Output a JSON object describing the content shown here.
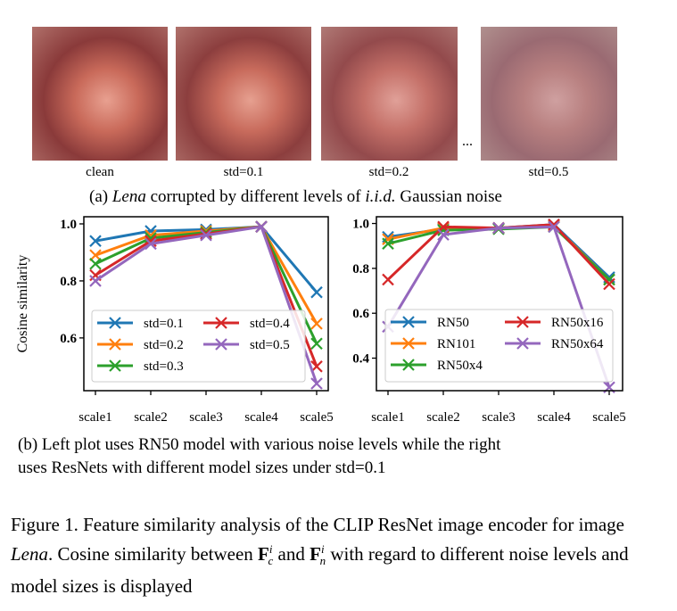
{
  "panel_a": {
    "images": [
      {
        "label": "clean",
        "noise": 0
      },
      {
        "label": "std=0.1",
        "noise": 0.1
      },
      {
        "label": "std=0.2",
        "noise": 0.2
      },
      {
        "label": "std=0.5",
        "noise": 0.5
      }
    ],
    "ellipsis": "...",
    "caption_prefix": "(a) ",
    "caption_italic": "Lena",
    "caption_mid": " corrupted by different levels of ",
    "caption_math": "i.i.d.",
    "caption_suffix": " Gaussian noise"
  },
  "panel_b": {
    "caption_line1": "(b) Left plot uses RN50 model with various noise levels while the right",
    "caption_line2": "uses ResNets with different model sizes under std=0.1"
  },
  "figure_caption": {
    "part1": "Figure 1.  Feature similarity analysis of the CLIP ResNet image encoder for image ",
    "italic": "Lena",
    "part2": ".  Cosine similarity between ",
    "F": "F",
    "sub_c": "c",
    "sub_n": "n",
    "sup_i": "i",
    "and": " and ",
    "part3": " with regard to different noise levels and model sizes is displayed"
  },
  "chart_data": [
    {
      "type": "line",
      "ylabel": "Cosine similarity",
      "xlabel": "",
      "categories": [
        "scale1",
        "scale2",
        "scale3",
        "scale4",
        "scale5"
      ],
      "yticks": [
        "1.0",
        "0.8",
        "0.6"
      ],
      "ylim": [
        0.415,
        1.025
      ],
      "legend": "lower-left",
      "series": [
        {
          "name": "std=0.1",
          "color": "#1f77b4",
          "values": [
            0.94,
            0.975,
            0.98,
            0.99,
            0.76
          ]
        },
        {
          "name": "std=0.2",
          "color": "#ff7f0e",
          "values": [
            0.89,
            0.96,
            0.975,
            0.99,
            0.65
          ]
        },
        {
          "name": "std=0.3",
          "color": "#2ca02c",
          "values": [
            0.86,
            0.95,
            0.97,
            0.99,
            0.58
          ]
        },
        {
          "name": "std=0.4",
          "color": "#d62728",
          "values": [
            0.82,
            0.94,
            0.965,
            0.99,
            0.5
          ]
        },
        {
          "name": "std=0.5",
          "color": "#9467bd",
          "values": [
            0.8,
            0.93,
            0.96,
            0.99,
            0.44
          ]
        }
      ]
    },
    {
      "type": "line",
      "ylabel": "",
      "xlabel": "",
      "categories": [
        "scale1",
        "scale2",
        "scale3",
        "scale4",
        "scale5"
      ],
      "yticks": [
        "1.0",
        "0.8",
        "0.6",
        "0.4"
      ],
      "ylim": [
        0.255,
        1.03
      ],
      "legend": "lower-left",
      "series": [
        {
          "name": "RN50",
          "color": "#1f77b4",
          "values": [
            0.94,
            0.975,
            0.98,
            0.995,
            0.76
          ]
        },
        {
          "name": "RN101",
          "color": "#ff7f0e",
          "values": [
            0.93,
            0.98,
            0.98,
            0.99,
            0.75
          ]
        },
        {
          "name": "RN50x4",
          "color": "#2ca02c",
          "values": [
            0.91,
            0.97,
            0.975,
            0.985,
            0.75
          ]
        },
        {
          "name": "RN50x16",
          "color": "#d62728",
          "values": [
            0.75,
            0.985,
            0.98,
            0.995,
            0.73
          ]
        },
        {
          "name": "RN50x64",
          "color": "#9467bd",
          "values": [
            0.54,
            0.95,
            0.98,
            0.985,
            0.27
          ]
        }
      ]
    }
  ]
}
